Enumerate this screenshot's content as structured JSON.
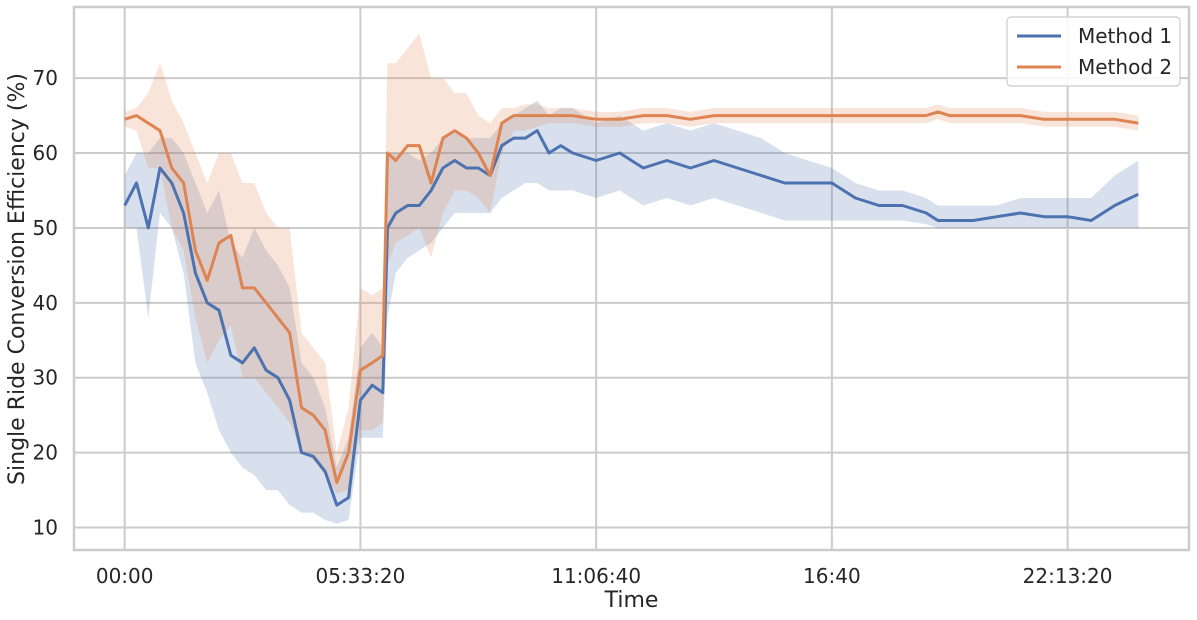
{
  "chart_data": {
    "type": "line",
    "title": "",
    "xlabel": "Time",
    "ylabel": "Single Ride Conversion Efficiency (%)",
    "x_unit": "seconds",
    "x_ticks": [
      {
        "value": 0,
        "label": "00:00"
      },
      {
        "value": 20000,
        "label": "05:33:20"
      },
      {
        "value": 40000,
        "label": "11:06:40"
      },
      {
        "value": 60000,
        "label": "16:40"
      },
      {
        "value": 80000,
        "label": "22:13:20"
      }
    ],
    "xlim": [
      -4300,
      90300
    ],
    "ylim": [
      7,
      79.5
    ],
    "y_ticks": [
      10,
      20,
      30,
      40,
      50,
      60,
      70
    ],
    "grid": true,
    "legend_position": "top-right",
    "series": [
      {
        "name": "Method 1",
        "color": "#4c72b0",
        "x": [
          0,
          1000,
          2000,
          3000,
          4000,
          5000,
          6000,
          7000,
          8000,
          9000,
          10000,
          11000,
          12000,
          13000,
          14000,
          15000,
          16000,
          17000,
          18000,
          19000,
          20000,
          21000,
          21900,
          22300,
          23000,
          24000,
          25000,
          26000,
          27000,
          28000,
          29000,
          30000,
          31000,
          32000,
          33000,
          34000,
          35000,
          36000,
          37000,
          38000,
          40000,
          42000,
          44000,
          46000,
          48000,
          50000,
          52000,
          54000,
          56000,
          58000,
          60000,
          62000,
          64000,
          66000,
          68000,
          69000,
          70000,
          72000,
          74000,
          76000,
          78000,
          80000,
          82000,
          84000,
          86000
        ],
        "values": [
          53,
          56,
          50,
          58,
          56,
          52,
          44,
          40,
          39,
          33,
          32,
          34,
          31,
          30,
          27,
          20,
          19.5,
          17.5,
          13,
          14,
          27,
          29,
          28,
          50,
          52,
          53,
          53,
          55,
          58,
          59,
          58,
          58,
          57,
          61,
          62,
          62,
          63,
          60,
          61,
          60,
          59,
          60,
          58,
          59,
          58,
          59,
          58,
          57,
          56,
          56,
          56,
          54,
          53,
          53,
          52,
          51,
          51,
          51,
          51.5,
          52,
          51.5,
          51.5,
          51,
          53,
          54.5
        ],
        "lower": [
          50,
          50,
          38,
          52,
          50,
          44,
          32,
          28,
          23,
          20,
          18,
          17,
          15,
          15,
          13,
          12,
          12,
          11,
          10.5,
          11,
          22,
          22,
          22,
          38,
          44,
          46,
          47,
          48,
          50,
          52,
          52,
          52,
          52,
          54,
          55,
          56,
          56,
          55,
          55,
          55,
          54,
          55,
          53,
          54,
          53,
          54,
          53,
          52,
          51,
          51,
          51,
          51,
          51,
          51,
          50.5,
          50,
          50,
          50,
          50,
          50,
          50,
          50,
          50,
          50,
          50
        ],
        "upper": [
          57,
          60,
          60,
          62,
          62,
          60,
          56,
          52,
          55,
          48,
          46,
          50,
          47,
          45,
          42,
          32,
          30,
          26,
          18,
          22,
          34,
          36,
          34,
          60,
          60,
          60,
          59,
          60,
          62,
          63,
          62,
          62,
          62,
          64,
          65,
          66,
          67,
          65,
          66,
          66,
          64,
          65,
          63,
          64,
          63,
          64,
          63,
          62,
          60,
          59,
          58,
          56,
          55,
          55,
          54,
          53,
          53,
          53,
          53,
          54,
          54,
          54,
          54,
          57,
          59
        ]
      },
      {
        "name": "Method 2",
        "color": "#dd8452",
        "x": [
          0,
          1000,
          2000,
          3000,
          4000,
          5000,
          6000,
          7000,
          8000,
          9000,
          10000,
          11000,
          12000,
          13000,
          14000,
          15000,
          16000,
          17000,
          18000,
          19000,
          20000,
          21000,
          21900,
          22300,
          23000,
          24000,
          25000,
          26000,
          27000,
          28000,
          29000,
          30000,
          31000,
          32000,
          33000,
          34000,
          35000,
          36000,
          37000,
          38000,
          40000,
          42000,
          44000,
          46000,
          48000,
          50000,
          52000,
          54000,
          56000,
          58000,
          60000,
          62000,
          64000,
          66000,
          68000,
          69000,
          70000,
          72000,
          74000,
          76000,
          78000,
          80000,
          82000,
          84000,
          86000
        ],
        "values": [
          64.5,
          65,
          64,
          63,
          58,
          56,
          47,
          43,
          48,
          49,
          42,
          42,
          40,
          38,
          36,
          26,
          25,
          23,
          16,
          20,
          31,
          32,
          33,
          60,
          59,
          61,
          61,
          56,
          62,
          63,
          62,
          60,
          57,
          64,
          65,
          65,
          65,
          65,
          65,
          65,
          64.5,
          64.5,
          65,
          65,
          64.5,
          65,
          65,
          65,
          65,
          65,
          65,
          65,
          65,
          65,
          65,
          65.5,
          65,
          65,
          65,
          65,
          64.5,
          64.5,
          64.5,
          64.5,
          64
        ],
        "lower": [
          63.5,
          63,
          58,
          58,
          50,
          47,
          38,
          32,
          35,
          37,
          30,
          30,
          28,
          26,
          24,
          20,
          19,
          17,
          14.5,
          15,
          23,
          23,
          24,
          45,
          48,
          49,
          50,
          46,
          52,
          55,
          55,
          54,
          52,
          60,
          63,
          63,
          63.5,
          64,
          64,
          64,
          63.5,
          63.5,
          64,
          64,
          63.5,
          64,
          64,
          64,
          64,
          64,
          64,
          64,
          64,
          64,
          64,
          64.5,
          64,
          64,
          64,
          64,
          63.5,
          63.5,
          63.5,
          63.5,
          63
        ],
        "upper": [
          65.5,
          66,
          68,
          72,
          67,
          64,
          60,
          56,
          60,
          60,
          56,
          56,
          52,
          50,
          50,
          36,
          34,
          32,
          20,
          26,
          42,
          41,
          42,
          72,
          72,
          74,
          76,
          70,
          70,
          68,
          68,
          65,
          64,
          66,
          66,
          66.5,
          66.5,
          66,
          66,
          66,
          65.5,
          65.5,
          66,
          66,
          65.5,
          66,
          66,
          66,
          66,
          66,
          66,
          66,
          66,
          66,
          66,
          66.5,
          66,
          66,
          66,
          66,
          65.5,
          65.5,
          65.5,
          65.5,
          65
        ]
      }
    ]
  }
}
